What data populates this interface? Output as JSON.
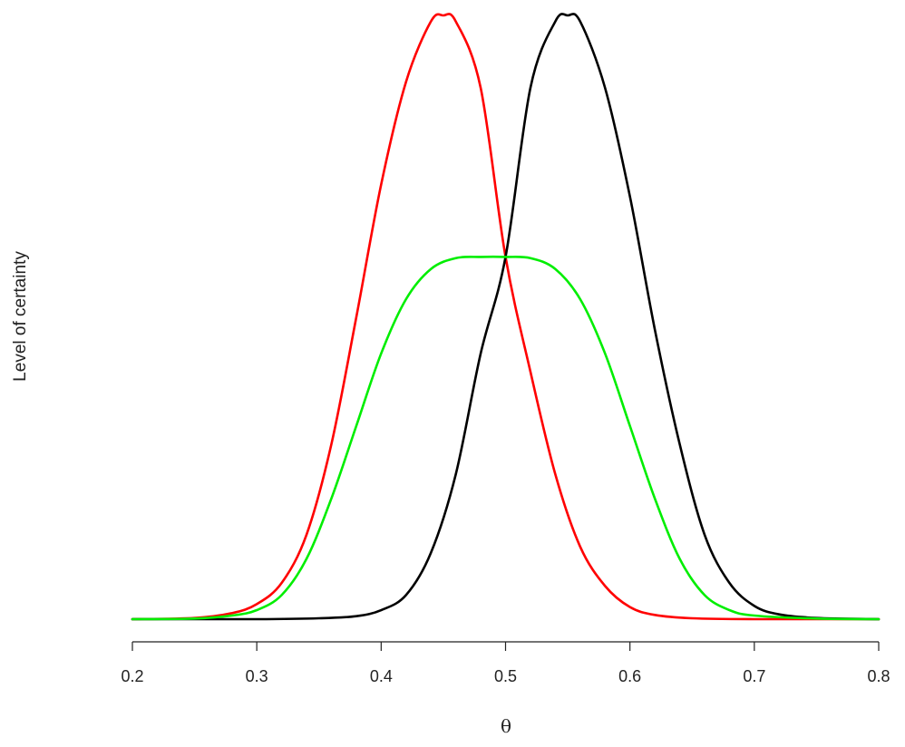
{
  "chart_data": {
    "type": "line",
    "title": "",
    "xlabel": "θ",
    "ylabel": "Level of certainty",
    "xlim": [
      0.2,
      0.8
    ],
    "ylim": [
      0,
      1
    ],
    "y_axis_shown": false,
    "grid": false,
    "legend": "none",
    "xticks": [
      0.2,
      0.3,
      0.4,
      0.5,
      0.6,
      0.7,
      0.8
    ],
    "xtick_labels": [
      "0.2",
      "0.3",
      "0.4",
      "0.5",
      "0.6",
      "0.7",
      "0.8"
    ],
    "series": [
      {
        "color": "#ff0000",
        "x": [
          0.2,
          0.25,
          0.28,
          0.3,
          0.32,
          0.34,
          0.36,
          0.38,
          0.4,
          0.42,
          0.44,
          0.45,
          0.46,
          0.48,
          0.5,
          0.52,
          0.54,
          0.56,
          0.58,
          0.6,
          0.62,
          0.65,
          0.7,
          0.8
        ],
        "y": [
          0.0,
          0.002,
          0.01,
          0.025,
          0.06,
          0.14,
          0.29,
          0.5,
          0.72,
          0.89,
          0.99,
          1.0,
          0.99,
          0.88,
          0.6,
          0.41,
          0.24,
          0.12,
          0.055,
          0.02,
          0.007,
          0.0015,
          0.0,
          0.0
        ]
      },
      {
        "color": "#000000",
        "x": [
          0.2,
          0.3,
          0.35,
          0.38,
          0.4,
          0.42,
          0.44,
          0.46,
          0.48,
          0.5,
          0.52,
          0.54,
          0.55,
          0.56,
          0.58,
          0.6,
          0.62,
          0.64,
          0.66,
          0.68,
          0.7,
          0.72,
          0.75,
          0.8
        ],
        "y": [
          0.0,
          0.0,
          0.0015,
          0.005,
          0.015,
          0.04,
          0.11,
          0.24,
          0.44,
          0.6,
          0.88,
          0.99,
          1.0,
          0.99,
          0.88,
          0.7,
          0.48,
          0.29,
          0.14,
          0.06,
          0.022,
          0.008,
          0.002,
          0.0
        ]
      },
      {
        "color": "#00ee00",
        "x": [
          0.2,
          0.25,
          0.28,
          0.3,
          0.32,
          0.34,
          0.36,
          0.38,
          0.4,
          0.42,
          0.44,
          0.46,
          0.48,
          0.5,
          0.52,
          0.54,
          0.56,
          0.58,
          0.6,
          0.62,
          0.64,
          0.66,
          0.68,
          0.7,
          0.75,
          0.8
        ],
        "y": [
          0.0,
          0.001,
          0.006,
          0.015,
          0.04,
          0.1,
          0.2,
          0.32,
          0.44,
          0.53,
          0.58,
          0.598,
          0.6,
          0.6,
          0.598,
          0.58,
          0.53,
          0.44,
          0.32,
          0.2,
          0.1,
          0.04,
          0.015,
          0.006,
          0.001,
          0.0
        ]
      }
    ]
  }
}
